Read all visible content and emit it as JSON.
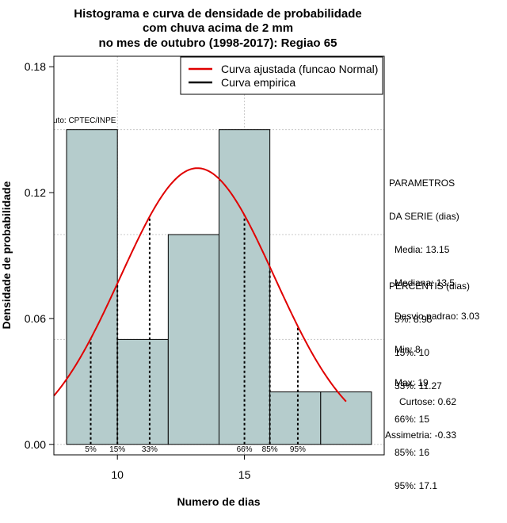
{
  "chart_data": {
    "type": "bar",
    "title": [
      "Histograma e curva de densidade de probabilidade",
      "com chuva acima de 2 mm",
      "no mes de outubro (1998-2017): Regiao 65"
    ],
    "xlabel": "Numero de dias",
    "ylabel": "Densidade de probabilidade",
    "xlim": [
      7.5,
      20.5
    ],
    "ylim": [
      -0.005,
      0.185
    ],
    "x_ticks": [
      10,
      15
    ],
    "x_tick_labels": [
      "10",
      "15"
    ],
    "y_ticks": [
      0.0,
      0.06,
      0.12,
      0.18
    ],
    "y_tick_labels": [
      "0.00",
      "0.06",
      "0.12",
      "0.18"
    ],
    "grid": true,
    "legend_position": "top-right",
    "series": [
      {
        "name": "Curva ajustada (funcao Normal)",
        "color": "#e00000"
      },
      {
        "name": "Curva empirica",
        "color": "#000000"
      }
    ],
    "bars": [
      {
        "x0": 8,
        "x1": 10,
        "density": 0.15
      },
      {
        "x0": 10,
        "x1": 12,
        "density": 0.05
      },
      {
        "x0": 12,
        "x1": 14,
        "density": 0.1
      },
      {
        "x0": 14,
        "x1": 16,
        "density": 0.15
      },
      {
        "x0": 16,
        "x1": 18,
        "density": 0.025
      },
      {
        "x0": 18,
        "x1": 20,
        "density": 0.025
      }
    ],
    "bar_color": "#b5cccc",
    "normal_fit": {
      "mean": 13.15,
      "sd": 3.03,
      "x_from": 7.5,
      "x_to": 19.0
    },
    "percentile_lines": [
      {
        "label": "5%",
        "value": 8.95
      },
      {
        "label": "15%",
        "value": 10
      },
      {
        "label": "33%",
        "value": 11.27
      },
      {
        "label": "66%",
        "value": 15
      },
      {
        "label": "85%",
        "value": 16
      },
      {
        "label": "95%",
        "value": 17.1
      }
    ],
    "source_note": "uto: CPTEC/INPE"
  },
  "stats": {
    "parametros_header": [
      "PARAMETROS",
      "DA SERIE (dias)"
    ],
    "parametros": [
      "Media: 13.15",
      "Mediana: 13.5",
      "Desvio padrao: 3.03",
      "Min: 8",
      "Max: 19"
    ],
    "percentis_header": "PERCENTIS (dias)",
    "percentis": [
      "5%: 8.95",
      "15%: 10",
      "33%: 11.27",
      "66%: 15",
      "85%: 16",
      "95%: 17.1"
    ],
    "shape": [
      "Curtose: 0.62",
      "Assimetria: -0.33"
    ]
  }
}
